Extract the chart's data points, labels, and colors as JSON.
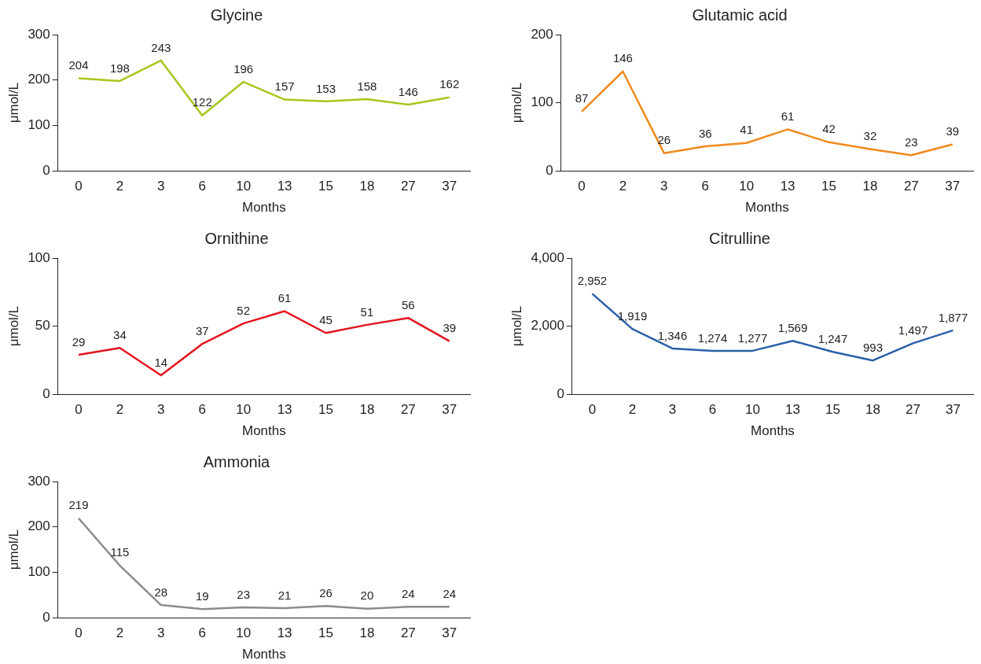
{
  "chart_data": [
    {
      "type": "line",
      "title": "Glycine",
      "xlabel": "Months",
      "ylabel": "μmol/L",
      "categories": [
        "0",
        "2",
        "3",
        "6",
        "10",
        "13",
        "15",
        "18",
        "27",
        "37"
      ],
      "series": [
        {
          "color": "#a5c81e",
          "values": [
            204,
            198,
            243,
            122,
            196,
            157,
            153,
            158,
            146,
            162
          ]
        }
      ],
      "ylim": [
        0,
        300
      ],
      "yticks": [
        0,
        100,
        200,
        300
      ],
      "data_labels": true,
      "marker": "none",
      "grid": false,
      "legend": false
    },
    {
      "type": "line",
      "title": "Glutamic acid",
      "xlabel": "Months",
      "ylabel": "μmol/L",
      "categories": [
        "0",
        "2",
        "3",
        "6",
        "10",
        "13",
        "15",
        "18",
        "27",
        "37"
      ],
      "series": [
        {
          "color": "#f08a1c",
          "values": [
            87,
            146,
            26,
            36,
            41,
            61,
            42,
            32,
            23,
            39
          ]
        }
      ],
      "ylim": [
        0,
        200
      ],
      "yticks": [
        0,
        100,
        200
      ],
      "data_labels": true,
      "marker": "none",
      "grid": false,
      "legend": false
    },
    {
      "type": "line",
      "title": "Ornithine",
      "xlabel": "Months",
      "ylabel": "μmol/L",
      "categories": [
        "0",
        "2",
        "3",
        "6",
        "10",
        "13",
        "15",
        "18",
        "27",
        "37"
      ],
      "series": [
        {
          "color": "#e3141e",
          "values": [
            29,
            34,
            14,
            37,
            52,
            61,
            45,
            51,
            56,
            39
          ]
        }
      ],
      "ylim": [
        0,
        100
      ],
      "yticks": [
        0,
        50,
        100
      ],
      "data_labels": true,
      "marker": "none",
      "grid": false,
      "legend": false
    },
    {
      "type": "line",
      "title": "Citrulline",
      "xlabel": "Months",
      "ylabel": "μmol/L",
      "categories": [
        "0",
        "2",
        "3",
        "6",
        "10",
        "13",
        "15",
        "18",
        "27",
        "37"
      ],
      "series": [
        {
          "color": "#2a5fa8",
          "values": [
            2952,
            1919,
            1346,
            1274,
            1277,
            1569,
            1247,
            993,
            1497,
            1877
          ],
          "value_labels": [
            "2,952",
            "1,919",
            "1,346",
            "1,274",
            "1,277",
            "1,569",
            "1,247",
            "993",
            "1,497",
            "1,877"
          ]
        }
      ],
      "ylim": [
        0,
        4000
      ],
      "yticks": [
        0,
        {
          "value": 2000,
          "label": "2,000"
        },
        {
          "value": 4000,
          "label": "4,000"
        }
      ],
      "marker": "none",
      "grid": false,
      "legend": false
    },
    {
      "type": "line",
      "title": "Ammonia",
      "xlabel": "Months",
      "ylabel": "μmol/L",
      "categories": [
        "0",
        "2",
        "3",
        "6",
        "10",
        "13",
        "15",
        "18",
        "27",
        "37"
      ],
      "series": [
        {
          "color": "#8c8c8c",
          "values": [
            219,
            115,
            28,
            19,
            23,
            21,
            26,
            20,
            24,
            24
          ]
        }
      ],
      "ylim": [
        0,
        300
      ],
      "yticks": [
        0,
        100,
        200,
        300
      ],
      "data_labels": true,
      "marker": "none",
      "grid": false,
      "legend": false
    }
  ]
}
